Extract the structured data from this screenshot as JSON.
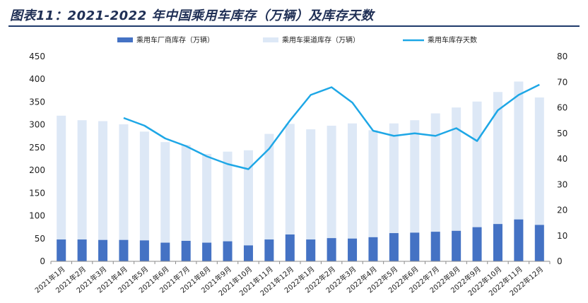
{
  "title": "图表11：2021-2022 年中国乘用车库存（万辆）及库存天数",
  "colors": {
    "manufacturer": "#4472c4",
    "channel": "#dde8f6",
    "days": "#1ea7e6",
    "title": "#1f2f55"
  },
  "chart_data": {
    "type": "bar",
    "title": "图表11：2021-2022 年中国乘用车库存（万辆）及库存天数",
    "categories": [
      "2021年1月",
      "2021年2月",
      "2021年3月",
      "2021年4月",
      "2021年5月",
      "2021年6月",
      "2021年7月",
      "2021年8月",
      "2021年9月",
      "2021年10月",
      "2021年11月",
      "2021年12月",
      "2022年1月",
      "2022年2月",
      "2022年3月",
      "2022年4月",
      "2022年5月",
      "2022年6月",
      "2022年7月",
      "2022年8月",
      "2022年9月",
      "2022年10月",
      "2022年11月",
      "2022年12月"
    ],
    "series": [
      {
        "name": "乘用车厂商库存（万辆）",
        "type": "bar",
        "axis": "left",
        "values": [
          48,
          48,
          47,
          47,
          46,
          41,
          45,
          41,
          44,
          35,
          48,
          59,
          48,
          51,
          50,
          53,
          62,
          63,
          65,
          67,
          75,
          82,
          92,
          80
        ]
      },
      {
        "name": "乘用车渠道库存（万辆）",
        "type": "bar",
        "axis": "left",
        "note_total_height": true,
        "values": [
          320,
          310,
          308,
          301,
          285,
          262,
          256,
          236,
          241,
          244,
          280,
          302,
          290,
          298,
          303,
          288,
          303,
          310,
          325,
          338,
          351,
          372,
          395,
          360
        ]
      },
      {
        "name": "乘用车库存天数",
        "type": "line",
        "axis": "right",
        "values": [
          null,
          null,
          null,
          56,
          53,
          48,
          45,
          41,
          38,
          36,
          44,
          55,
          65,
          68,
          62,
          51,
          49,
          50,
          49,
          52,
          47,
          59,
          65,
          69
        ]
      }
    ],
    "y_left": {
      "min": 0,
      "max": 450,
      "ticks": [
        0,
        50,
        100,
        150,
        200,
        250,
        300,
        350,
        400,
        450
      ]
    },
    "y_right": {
      "min": 0,
      "max": 80,
      "ticks": [
        0,
        10,
        20,
        30,
        40,
        50,
        60,
        70,
        80
      ]
    },
    "legend_position": "top",
    "grid": false
  }
}
